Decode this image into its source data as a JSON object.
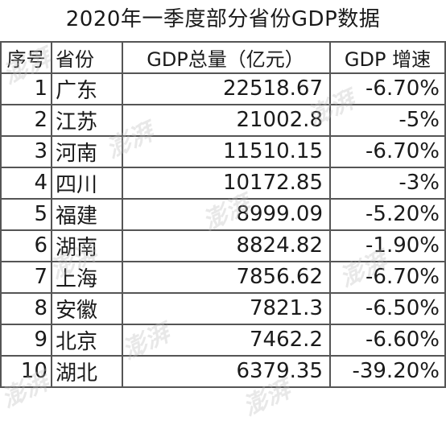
{
  "title": "2020年一季度部分省份GDP数据",
  "headers": [
    "序号",
    "省份",
    "GDP总量（亿元）",
    "GDP 增速"
  ],
  "rows": [
    {
      "no": "1",
      "province": "广东",
      "gdp": "22518.67",
      "growth": "-6.70%"
    },
    {
      "no": "2",
      "province": "江苏",
      "gdp": "21002.8",
      "growth": "-5%"
    },
    {
      "no": "3",
      "province": "河南",
      "gdp": "11510.15",
      "growth": "-6.70%"
    },
    {
      "no": "4",
      "province": "四川",
      "gdp": "10172.85",
      "growth": "-3%"
    },
    {
      "no": "5",
      "province": "福建",
      "gdp": "8999.09",
      "growth": "-5.20%"
    },
    {
      "no": "6",
      "province": "湖南",
      "gdp": "8824.82",
      "growth": "-1.90%"
    },
    {
      "no": "7",
      "province": "上海",
      "gdp": "7856.62",
      "growth": "-6.70%"
    },
    {
      "no": "8",
      "province": "安徽",
      "gdp": "7821.3",
      "growth": "-6.50%"
    },
    {
      "no": "9",
      "province": "北京",
      "gdp": "7462.2",
      "growth": "-6.60%"
    },
    {
      "no": "10",
      "province": "湖北",
      "gdp": "6379.35",
      "growth": "-39.20%"
    }
  ],
  "watermark": "澎湃"
}
